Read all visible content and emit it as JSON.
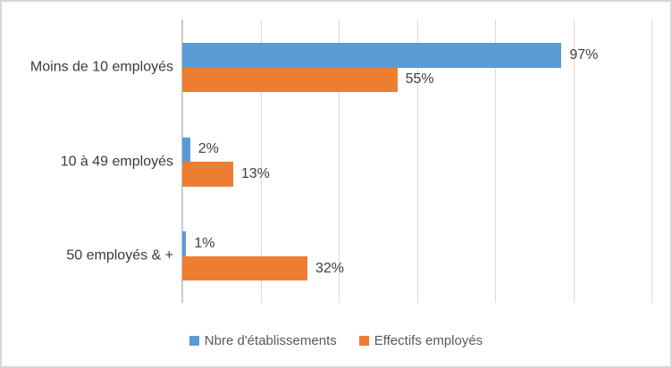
{
  "chart_data": {
    "type": "bar",
    "orientation": "horizontal",
    "title": "",
    "categories": [
      "Moins de 10 employés",
      "10 à 49 employés",
      "50 employés & +"
    ],
    "series": [
      {
        "name": "Nbre d'établissements",
        "color": "#5B9BD5",
        "values": [
          97,
          2,
          1
        ],
        "data_labels": [
          "97%",
          "2%",
          "1%"
        ]
      },
      {
        "name": "Effectifs employés",
        "color": "#ED7D31",
        "values": [
          55,
          13,
          32
        ],
        "data_labels": [
          "55%",
          "13%",
          "32%"
        ]
      }
    ],
    "value_axis": {
      "min": 0,
      "max": 120,
      "gridline_step": 20,
      "unit": "%",
      "tick_labels_visible": false
    },
    "gridlines": true,
    "legend_position": "bottom"
  },
  "colors": {
    "series_blue": "#5B9BD5",
    "series_orange": "#ED7D31",
    "gridline": "#D9D9D9",
    "axis_line": "#C9C9C9",
    "frame_border": "#D7D7D7",
    "background": "#FFFFFF",
    "category_text": "#3A3A3A",
    "data_label_text": "#404040",
    "legend_text": "#595959"
  }
}
